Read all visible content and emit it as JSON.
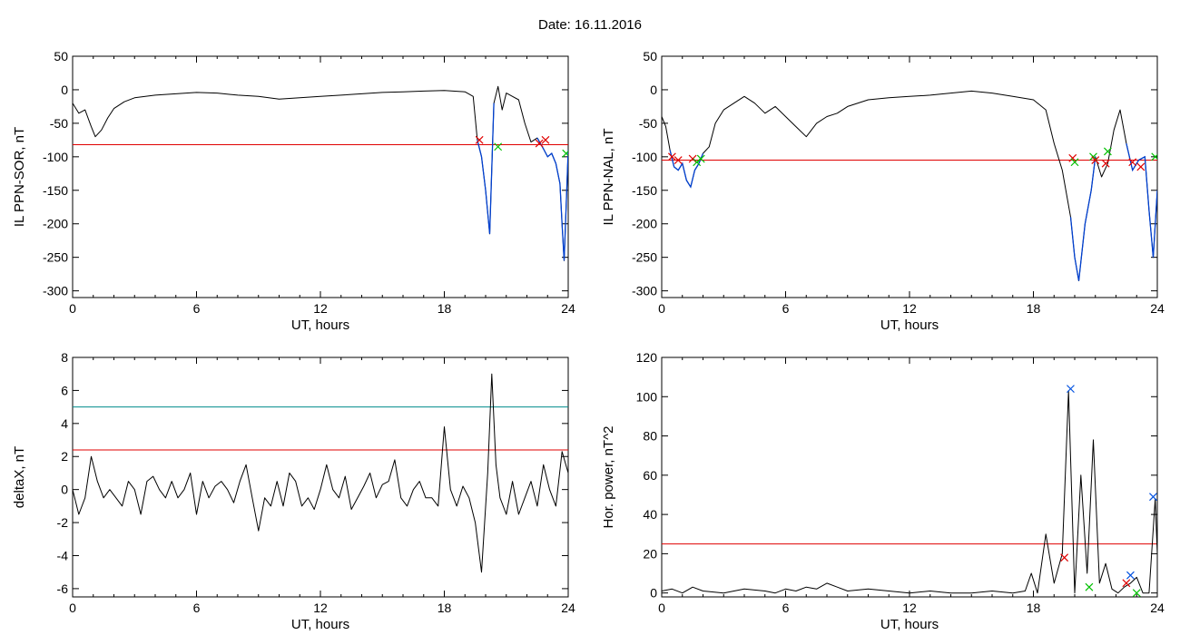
{
  "page": {
    "title": "Date:  16.11.2016"
  },
  "colors": {
    "threshold": "#e00000",
    "threshold2": "#008b8b",
    "trace": "#000000",
    "event": "#0040d0",
    "marker_red": "#e00000",
    "marker_green": "#00c000",
    "marker_blue": "#0050e0"
  },
  "chart_data": [
    {
      "type": "line",
      "xlabel": "UT, hours",
      "ylabel": "IL PPN-SOR, nT",
      "xlim": [
        0,
        24
      ],
      "ylim": [
        -310,
        50
      ],
      "xticks": [
        0,
        6,
        12,
        18,
        24
      ],
      "yticks": [
        50,
        0,
        -50,
        -100,
        -150,
        -200,
        -250,
        -300
      ],
      "threshold": -82,
      "series": [
        {
          "x": [
            0,
            0.3,
            0.6,
            0.9,
            1.1,
            1.4,
            1.7,
            2.0,
            2.5,
            3,
            4,
            5,
            6,
            7,
            8,
            9,
            10,
            11,
            12,
            13,
            14,
            15,
            16,
            17,
            18,
            19,
            19.4,
            19.6,
            19.8,
            20.0,
            20.2,
            20.4,
            20.6,
            20.8,
            21.0,
            21.3,
            21.6,
            21.9,
            22.2,
            22.5,
            22.8,
            23.0,
            23.2,
            23.4,
            23.6,
            23.7,
            23.8,
            23.9,
            24
          ],
          "y": [
            -20,
            -35,
            -30,
            -55,
            -70,
            -60,
            -42,
            -28,
            -18,
            -12,
            -8,
            -6,
            -4,
            -5,
            -8,
            -10,
            -14,
            -12,
            -10,
            -8,
            -6,
            -4,
            -3,
            -2,
            -1,
            -3,
            -10,
            -75,
            -100,
            -150,
            -215,
            -20,
            5,
            -30,
            -5,
            -10,
            -15,
            -50,
            -78,
            -72,
            -88,
            -100,
            -95,
            -110,
            -140,
            -200,
            -255,
            -175,
            -90
          ]
        }
      ],
      "event_segments": [
        [
          19.5,
          20.4
        ],
        [
          22.5,
          24
        ]
      ],
      "markers": [
        {
          "x": 19.7,
          "y": -75,
          "color": "red"
        },
        {
          "x": 20.6,
          "y": -85,
          "color": "green"
        },
        {
          "x": 22.6,
          "y": -80,
          "color": "red"
        },
        {
          "x": 22.9,
          "y": -75,
          "color": "red"
        },
        {
          "x": 23.9,
          "y": -95,
          "color": "green"
        }
      ]
    },
    {
      "type": "line",
      "xlabel": "UT, hours",
      "ylabel": "IL PPN-NAL, nT",
      "xlim": [
        0,
        24
      ],
      "ylim": [
        -310,
        50
      ],
      "xticks": [
        0,
        6,
        12,
        18,
        24
      ],
      "yticks": [
        50,
        0,
        -50,
        -100,
        -150,
        -200,
        -250,
        -300
      ],
      "threshold": -105,
      "series": [
        {
          "x": [
            0,
            0.2,
            0.4,
            0.6,
            0.8,
            1.0,
            1.2,
            1.4,
            1.6,
            1.8,
            2.0,
            2.3,
            2.6,
            3.0,
            3.5,
            4.0,
            4.5,
            5.0,
            5.5,
            6.0,
            6.5,
            7.0,
            7.5,
            8.0,
            8.5,
            9,
            10,
            11,
            12,
            13,
            14,
            15,
            16,
            17,
            18,
            18.6,
            19.0,
            19.4,
            19.8,
            20.0,
            20.2,
            20.5,
            20.8,
            21.0,
            21.3,
            21.6,
            21.9,
            22.2,
            22.5,
            22.8,
            23.1,
            23.4,
            23.6,
            23.8,
            24
          ],
          "y": [
            -40,
            -55,
            -90,
            -115,
            -120,
            -110,
            -135,
            -145,
            -120,
            -110,
            -95,
            -85,
            -50,
            -30,
            -20,
            -10,
            -20,
            -35,
            -25,
            -40,
            -55,
            -70,
            -50,
            -40,
            -35,
            -25,
            -15,
            -12,
            -10,
            -8,
            -5,
            -2,
            -5,
            -10,
            -15,
            -30,
            -80,
            -120,
            -190,
            -250,
            -285,
            -200,
            -150,
            -100,
            -130,
            -110,
            -60,
            -30,
            -80,
            -120,
            -105,
            -100,
            -180,
            -250,
            -150
          ]
        }
      ],
      "event_segments": [
        [
          0.4,
          2.1
        ],
        [
          19.5,
          21.1
        ],
        [
          22.5,
          24
        ]
      ],
      "markers": [
        {
          "x": 0.5,
          "y": -100,
          "color": "red"
        },
        {
          "x": 0.8,
          "y": -105,
          "color": "red"
        },
        {
          "x": 1.5,
          "y": -103,
          "color": "red"
        },
        {
          "x": 1.7,
          "y": -108,
          "color": "green"
        },
        {
          "x": 1.9,
          "y": -103,
          "color": "green"
        },
        {
          "x": 19.9,
          "y": -102,
          "color": "red"
        },
        {
          "x": 20.0,
          "y": -108,
          "color": "green"
        },
        {
          "x": 20.9,
          "y": -100,
          "color": "green"
        },
        {
          "x": 21.0,
          "y": -105,
          "color": "red"
        },
        {
          "x": 21.5,
          "y": -110,
          "color": "red"
        },
        {
          "x": 21.6,
          "y": -92,
          "color": "green"
        },
        {
          "x": 22.8,
          "y": -108,
          "color": "red"
        },
        {
          "x": 23.2,
          "y": -115,
          "color": "red"
        },
        {
          "x": 23.9,
          "y": -100,
          "color": "green"
        }
      ]
    },
    {
      "type": "line",
      "xlabel": "UT, hours",
      "ylabel": "deltaX, nT",
      "xlim": [
        0,
        24
      ],
      "ylim": [
        -6.5,
        8
      ],
      "xticks": [
        0,
        6,
        12,
        18,
        24
      ],
      "yticks": [
        8,
        6,
        4,
        2,
        0,
        -2,
        -4,
        -6
      ],
      "threshold": 2.4,
      "threshold2": 5,
      "series": [
        {
          "x": [
            0,
            0.3,
            0.6,
            0.9,
            1.2,
            1.5,
            1.8,
            2.1,
            2.4,
            2.7,
            3.0,
            3.3,
            3.6,
            3.9,
            4.2,
            4.5,
            4.8,
            5.1,
            5.4,
            5.7,
            6.0,
            6.3,
            6.6,
            6.9,
            7.2,
            7.5,
            7.8,
            8.1,
            8.4,
            8.7,
            9.0,
            9.3,
            9.6,
            9.9,
            10.2,
            10.5,
            10.8,
            11.1,
            11.4,
            11.7,
            12.0,
            12.3,
            12.6,
            12.9,
            13.2,
            13.5,
            13.8,
            14.1,
            14.4,
            14.7,
            15.0,
            15.3,
            15.6,
            15.9,
            16.2,
            16.5,
            16.8,
            17.1,
            17.4,
            17.7,
            18.0,
            18.3,
            18.6,
            18.9,
            19.2,
            19.5,
            19.8,
            20.1,
            20.3,
            20.5,
            20.7,
            21.0,
            21.3,
            21.6,
            21.9,
            22.2,
            22.5,
            22.8,
            23.1,
            23.4,
            23.7,
            24
          ],
          "y": [
            0,
            -1.5,
            -0.5,
            2,
            0.5,
            -0.5,
            0,
            -0.5,
            -1,
            0.5,
            0,
            -1.5,
            0.5,
            0.8,
            0,
            -0.5,
            0.5,
            -0.5,
            0,
            1,
            -1.5,
            0.5,
            -0.5,
            0.2,
            0.5,
            0,
            -0.8,
            0.5,
            1.5,
            -0.5,
            -2.5,
            -0.5,
            -1,
            0.5,
            -1,
            1,
            0.5,
            -1,
            -0.5,
            -1.2,
            0,
            1.5,
            0,
            -0.5,
            0.8,
            -1.2,
            -0.5,
            0.2,
            1,
            -0.5,
            0.3,
            0.5,
            1.8,
            -0.5,
            -1,
            0,
            0.5,
            -0.5,
            -0.5,
            -1,
            3.8,
            0,
            -1,
            0.2,
            -0.5,
            -2,
            -5,
            1,
            7,
            1.5,
            -0.5,
            -1.5,
            0.5,
            -1.5,
            -0.5,
            0.5,
            -1,
            1.5,
            0,
            -1,
            2.3,
            1
          ]
        }
      ],
      "event_segments": [],
      "markers": []
    },
    {
      "type": "line",
      "xlabel": "UT, hours",
      "ylabel": "Hor. power, nT^2",
      "xlim": [
        0,
        24
      ],
      "ylim": [
        -2,
        120
      ],
      "xticks": [
        0,
        6,
        12,
        18,
        24
      ],
      "yticks": [
        120,
        100,
        80,
        60,
        40,
        20,
        0
      ],
      "threshold": 25,
      "series": [
        {
          "x": [
            0,
            0.5,
            1,
            1.5,
            2,
            3,
            4,
            5,
            5.5,
            6,
            6.5,
            7,
            7.5,
            8,
            8.5,
            9,
            10,
            11,
            12,
            13,
            14,
            15,
            16,
            17,
            17.6,
            17.9,
            18.2,
            18.6,
            19.0,
            19.4,
            19.7,
            20.0,
            20.3,
            20.6,
            20.9,
            21.2,
            21.5,
            21.8,
            22.1,
            22.4,
            22.7,
            23.0,
            23.3,
            23.6,
            23.9,
            24
          ],
          "y": [
            1,
            2,
            0,
            3,
            1,
            0,
            2,
            1,
            0,
            2,
            1,
            3,
            2,
            5,
            3,
            1,
            2,
            1,
            0,
            1,
            0,
            0,
            1,
            0,
            1,
            10,
            0,
            30,
            5,
            20,
            103,
            0,
            60,
            10,
            78,
            5,
            15,
            2,
            0,
            3,
            5,
            8,
            0,
            0,
            48,
            20
          ]
        }
      ],
      "event_segments": [],
      "markers": [
        {
          "x": 19.5,
          "y": 18,
          "color": "red"
        },
        {
          "x": 19.8,
          "y": 104,
          "color": "blue"
        },
        {
          "x": 20.7,
          "y": 3,
          "color": "green"
        },
        {
          "x": 22.5,
          "y": 5,
          "color": "red"
        },
        {
          "x": 22.7,
          "y": 9,
          "color": "blue"
        },
        {
          "x": 23.0,
          "y": 0,
          "color": "green"
        },
        {
          "x": 23.8,
          "y": 49,
          "color": "blue"
        }
      ]
    }
  ]
}
